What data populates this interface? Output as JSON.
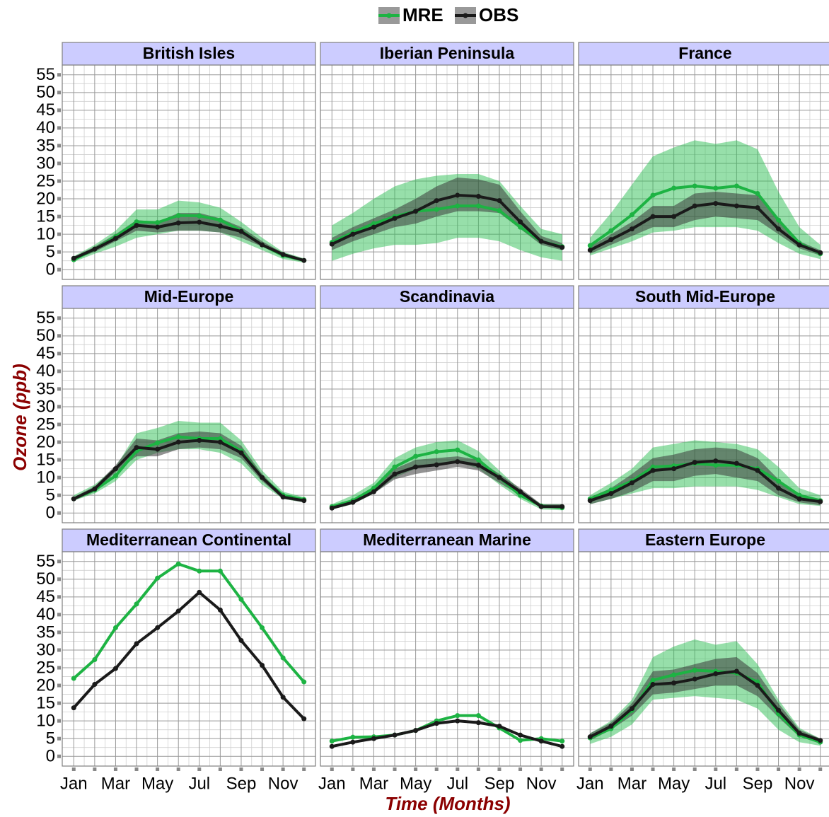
{
  "axes": {
    "x_label": "Time (Months)",
    "y_label": "Ozone (ppb)",
    "categories": [
      "Jan",
      null,
      "Mar",
      null,
      "May",
      null,
      "Jul",
      null,
      "Sep",
      null,
      "Nov",
      null
    ],
    "ylim": [
      -2.75,
      57.75
    ],
    "yticks": [
      0,
      5,
      10,
      15,
      20,
      25,
      30,
      35,
      40,
      45,
      50,
      55
    ],
    "grid": true
  },
  "chart_data": [
    {
      "type": "line",
      "title": "British Isles",
      "series": [
        {
          "name": "MRE",
          "color": "#1db343",
          "values": [
            2.8,
            5.8,
            9.3,
            13.5,
            13.3,
            15.3,
            15.2,
            14,
            11,
            7,
            4,
            2.6
          ],
          "lower": [
            2.2,
            4.5,
            6.5,
            9,
            10,
            11,
            11,
            10.5,
            8,
            5.5,
            3,
            2
          ],
          "upper": [
            3.8,
            7,
            11,
            17,
            17,
            19.5,
            19,
            17.5,
            13.5,
            9,
            5,
            3.2
          ]
        },
        {
          "name": "OBS",
          "color": "#1a1a1a",
          "values": [
            3.2,
            5.8,
            8.8,
            12.5,
            12,
            13.2,
            13.4,
            12.3,
            10.8,
            7,
            4.3,
            2.6
          ],
          "lower": [
            2.8,
            5,
            8,
            11,
            10.5,
            11,
            11,
            10.5,
            9,
            6.5,
            4,
            2.3
          ],
          "upper": [
            3.6,
            6.5,
            10,
            14,
            13.5,
            16,
            16,
            14.5,
            12,
            8,
            4.8,
            3
          ]
        }
      ]
    },
    {
      "type": "line",
      "title": "Iberian Peninsula",
      "series": [
        {
          "name": "MRE",
          "color": "#1db343",
          "values": [
            7.7,
            10.5,
            13,
            15,
            16.5,
            17,
            18,
            18,
            16.7,
            12,
            8,
            6.5
          ],
          "lower": [
            2.5,
            4.5,
            6,
            7,
            7,
            7.5,
            9,
            9,
            8,
            5.5,
            3.5,
            2.5
          ],
          "upper": [
            12.5,
            16,
            20,
            23.5,
            25.5,
            26.5,
            27,
            27,
            25,
            18,
            11.5,
            10
          ]
        },
        {
          "name": "OBS",
          "color": "#1a1a1a",
          "values": [
            7.2,
            10,
            12,
            14.5,
            16.5,
            19.5,
            21,
            20.7,
            19.5,
            13.5,
            8,
            6.3
          ],
          "lower": [
            5.5,
            8,
            10,
            12,
            13,
            15,
            16.5,
            16.5,
            16,
            11.5,
            7,
            5.5
          ],
          "upper": [
            9,
            12,
            14.5,
            17,
            20,
            23.5,
            26,
            25.5,
            24,
            16.5,
            9.5,
            7.5
          ]
        }
      ]
    },
    {
      "type": "line",
      "title": "France",
      "series": [
        {
          "name": "MRE",
          "color": "#1db343",
          "values": [
            6.8,
            11,
            15.5,
            21,
            23,
            23.6,
            23,
            23.6,
            21.5,
            14,
            7.5,
            4.5
          ],
          "lower": [
            4,
            6,
            8,
            10.5,
            11,
            12,
            12,
            12,
            11,
            7.5,
            4.5,
            3
          ],
          "upper": [
            9,
            16,
            24,
            32,
            34.5,
            36.5,
            35.5,
            36.5,
            34,
            22,
            12,
            7
          ]
        },
        {
          "name": "OBS",
          "color": "#1a1a1a",
          "values": [
            5.5,
            8.5,
            11.5,
            15,
            15,
            18,
            18.7,
            18,
            17.5,
            11.5,
            7,
            4.8
          ],
          "lower": [
            4.5,
            7,
            9.5,
            12,
            12,
            14,
            15,
            14.5,
            14,
            10,
            6,
            4
          ],
          "upper": [
            6.5,
            10,
            13.5,
            18,
            18,
            21.5,
            22,
            21.5,
            21,
            14,
            8,
            5.5
          ]
        }
      ]
    },
    {
      "type": "line",
      "title": "Mid-Europe",
      "series": [
        {
          "name": "MRE",
          "color": "#1db343",
          "values": [
            4,
            6.5,
            10.5,
            17.5,
            19.8,
            21.5,
            21,
            21,
            17.5,
            10,
            5,
            3.8
          ],
          "lower": [
            3.5,
            5.5,
            9,
            15,
            17,
            18,
            18,
            17,
            14,
            8,
            4,
            3
          ],
          "upper": [
            5,
            8,
            13,
            22.5,
            24,
            26,
            25.5,
            25.5,
            20.5,
            12,
            6,
            4.5
          ]
        },
        {
          "name": "OBS",
          "color": "#1a1a1a",
          "values": [
            4,
            6.8,
            12.5,
            18.5,
            18,
            20,
            20.5,
            20,
            17,
            10,
            4.5,
            3.5
          ],
          "lower": [
            3.5,
            6,
            11.5,
            16,
            16,
            18,
            18.5,
            18,
            15.5,
            9,
            4,
            3
          ],
          "upper": [
            4.5,
            7.5,
            13.5,
            21,
            20.5,
            22.5,
            23,
            22.5,
            19,
            11,
            5,
            4
          ]
        }
      ]
    },
    {
      "type": "line",
      "title": "Scandinavia",
      "series": [
        {
          "name": "MRE",
          "color": "#1db343",
          "values": [
            1.8,
            3.5,
            7,
            13,
            16,
            17.3,
            17.8,
            15,
            10,
            5,
            2,
            1.5
          ],
          "lower": [
            1,
            2.5,
            5.5,
            10,
            12.5,
            14,
            14.5,
            12.5,
            8,
            4,
            1,
            0.8
          ],
          "upper": [
            2.5,
            5,
            8.5,
            15.5,
            18.5,
            20,
            20.5,
            17.5,
            12,
            6.5,
            2.5,
            2.5
          ]
        },
        {
          "name": "OBS",
          "color": "#1a1a1a",
          "values": [
            1.4,
            3,
            6,
            11,
            13,
            13.6,
            14.5,
            13.5,
            10,
            6,
            1.8,
            1.8
          ],
          "lower": [
            1,
            2.5,
            5.5,
            9.5,
            11,
            12,
            13,
            12,
            8.5,
            5,
            1.5,
            1.5
          ],
          "upper": [
            2,
            3.5,
            7,
            12.5,
            15,
            15.5,
            16,
            15,
            11,
            7,
            2.5,
            2.5
          ]
        }
      ]
    },
    {
      "type": "line",
      "title": "South Mid-Europe",
      "series": [
        {
          "name": "MRE",
          "color": "#1db343",
          "values": [
            4,
            6.5,
            9,
            13,
            13.3,
            14,
            13.5,
            13.5,
            12.5,
            9,
            5,
            3.5
          ],
          "lower": [
            2.5,
            4,
            5.5,
            7,
            7,
            7.5,
            7.5,
            7.5,
            6.5,
            4.5,
            2.5,
            2
          ],
          "upper": [
            5,
            8.5,
            12.5,
            18.5,
            19.5,
            20.5,
            20,
            19.5,
            18,
            13,
            7,
            5
          ]
        },
        {
          "name": "OBS",
          "color": "#1a1a1a",
          "values": [
            3.5,
            5.5,
            8.5,
            12,
            12.5,
            14.3,
            14.7,
            14,
            12,
            7,
            4,
            3.2
          ],
          "lower": [
            2.5,
            4,
            6,
            9,
            9,
            10.5,
            11,
            10,
            9,
            5,
            3,
            2.2
          ],
          "upper": [
            4.5,
            7,
            11,
            15.5,
            16.5,
            18,
            18.5,
            18,
            15.5,
            9.5,
            5,
            4
          ]
        }
      ]
    },
    {
      "type": "line",
      "title": "Mediterranean Continental",
      "series": [
        {
          "name": "MRE",
          "color": "#1db343",
          "values": [
            22,
            27.3,
            36.3,
            43,
            50.3,
            54.3,
            52.3,
            52.3,
            44.3,
            36.3,
            27.8,
            21
          ]
        },
        {
          "name": "OBS",
          "color": "#1a1a1a",
          "values": [
            13.7,
            20.3,
            24.8,
            31.8,
            36.3,
            41,
            46.3,
            41.3,
            32.7,
            25.7,
            16.7,
            10.6
          ]
        }
      ]
    },
    {
      "type": "line",
      "title": "Mediterranean Marine",
      "series": [
        {
          "name": "MRE",
          "color": "#1db343",
          "values": [
            4.3,
            5.4,
            5.5,
            6,
            7.3,
            10,
            11.5,
            11.5,
            8,
            4.5,
            5,
            4.3
          ]
        },
        {
          "name": "OBS",
          "color": "#1a1a1a",
          "values": [
            2.8,
            4,
            5,
            6,
            7.3,
            9.3,
            10,
            9.5,
            8.5,
            6,
            4.3,
            2.8
          ]
        }
      ]
    },
    {
      "type": "line",
      "title": "Eastern Europe",
      "series": [
        {
          "name": "MRE",
          "color": "#1db343",
          "values": [
            5.2,
            7.8,
            13,
            21.5,
            23,
            24.3,
            24,
            23.5,
            21,
            12,
            6,
            4
          ],
          "lower": [
            3.5,
            5.5,
            9,
            16,
            16.5,
            17,
            16.5,
            16,
            13.5,
            7.5,
            4,
            3
          ],
          "upper": [
            6.5,
            10,
            16,
            28,
            31,
            33,
            31.5,
            32.5,
            26,
            16,
            8,
            5
          ]
        },
        {
          "name": "OBS",
          "color": "#1a1a1a",
          "values": [
            5.5,
            8.5,
            13.5,
            20.3,
            20.7,
            21.8,
            23.3,
            24,
            20,
            13,
            6.5,
            4.5
          ],
          "lower": [
            4.5,
            7.5,
            11.5,
            17.5,
            18,
            19,
            20,
            20,
            17,
            11,
            5.5,
            4
          ],
          "upper": [
            6.5,
            9.5,
            15,
            24,
            24.5,
            26,
            27.5,
            28,
            23.5,
            15,
            7.5,
            5
          ]
        }
      ]
    }
  ]
}
